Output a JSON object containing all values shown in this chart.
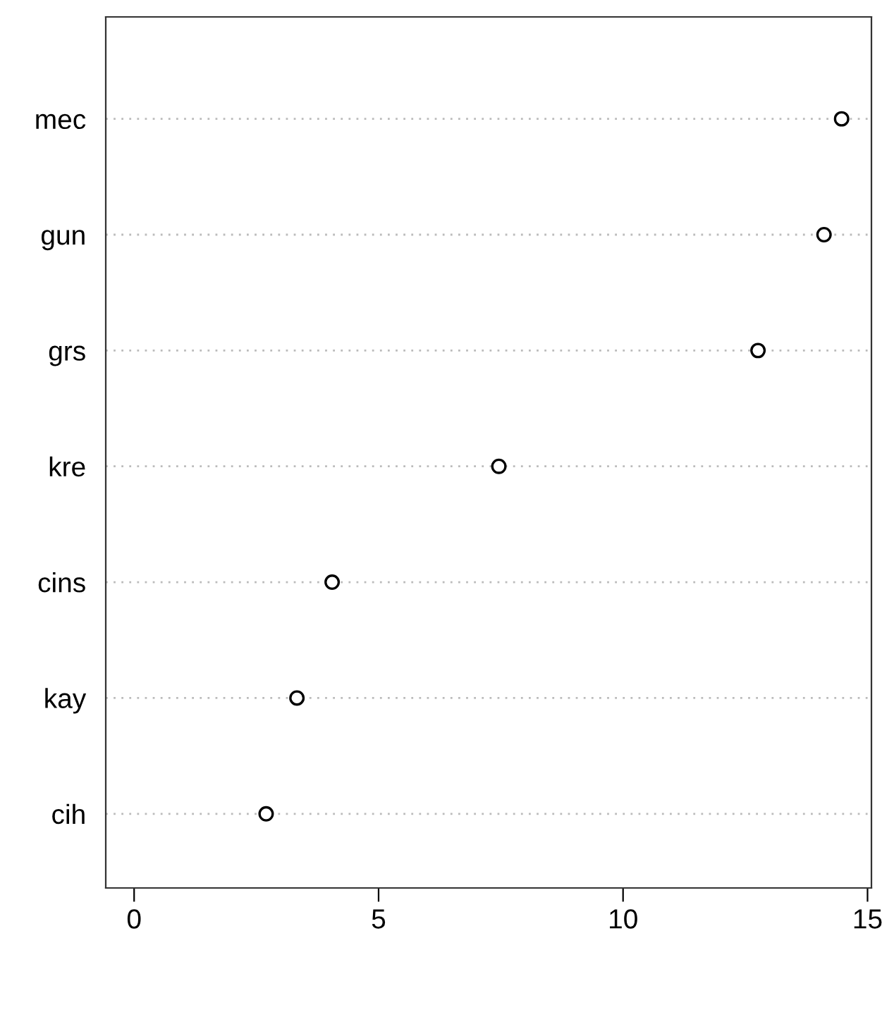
{
  "chart_data": {
    "type": "scatter",
    "orientation": "horizontal",
    "categories": [
      "mec",
      "gun",
      "grs",
      "kre",
      "cins",
      "kay",
      "cih"
    ],
    "values": [
      14.47,
      14.11,
      12.76,
      7.46,
      4.05,
      3.33,
      2.7
    ],
    "color": "#000000",
    "marker": "circle",
    "grid": "y",
    "xlim": [
      -0.58,
      15.08
    ],
    "xticks": [
      0,
      5,
      10,
      15
    ]
  }
}
